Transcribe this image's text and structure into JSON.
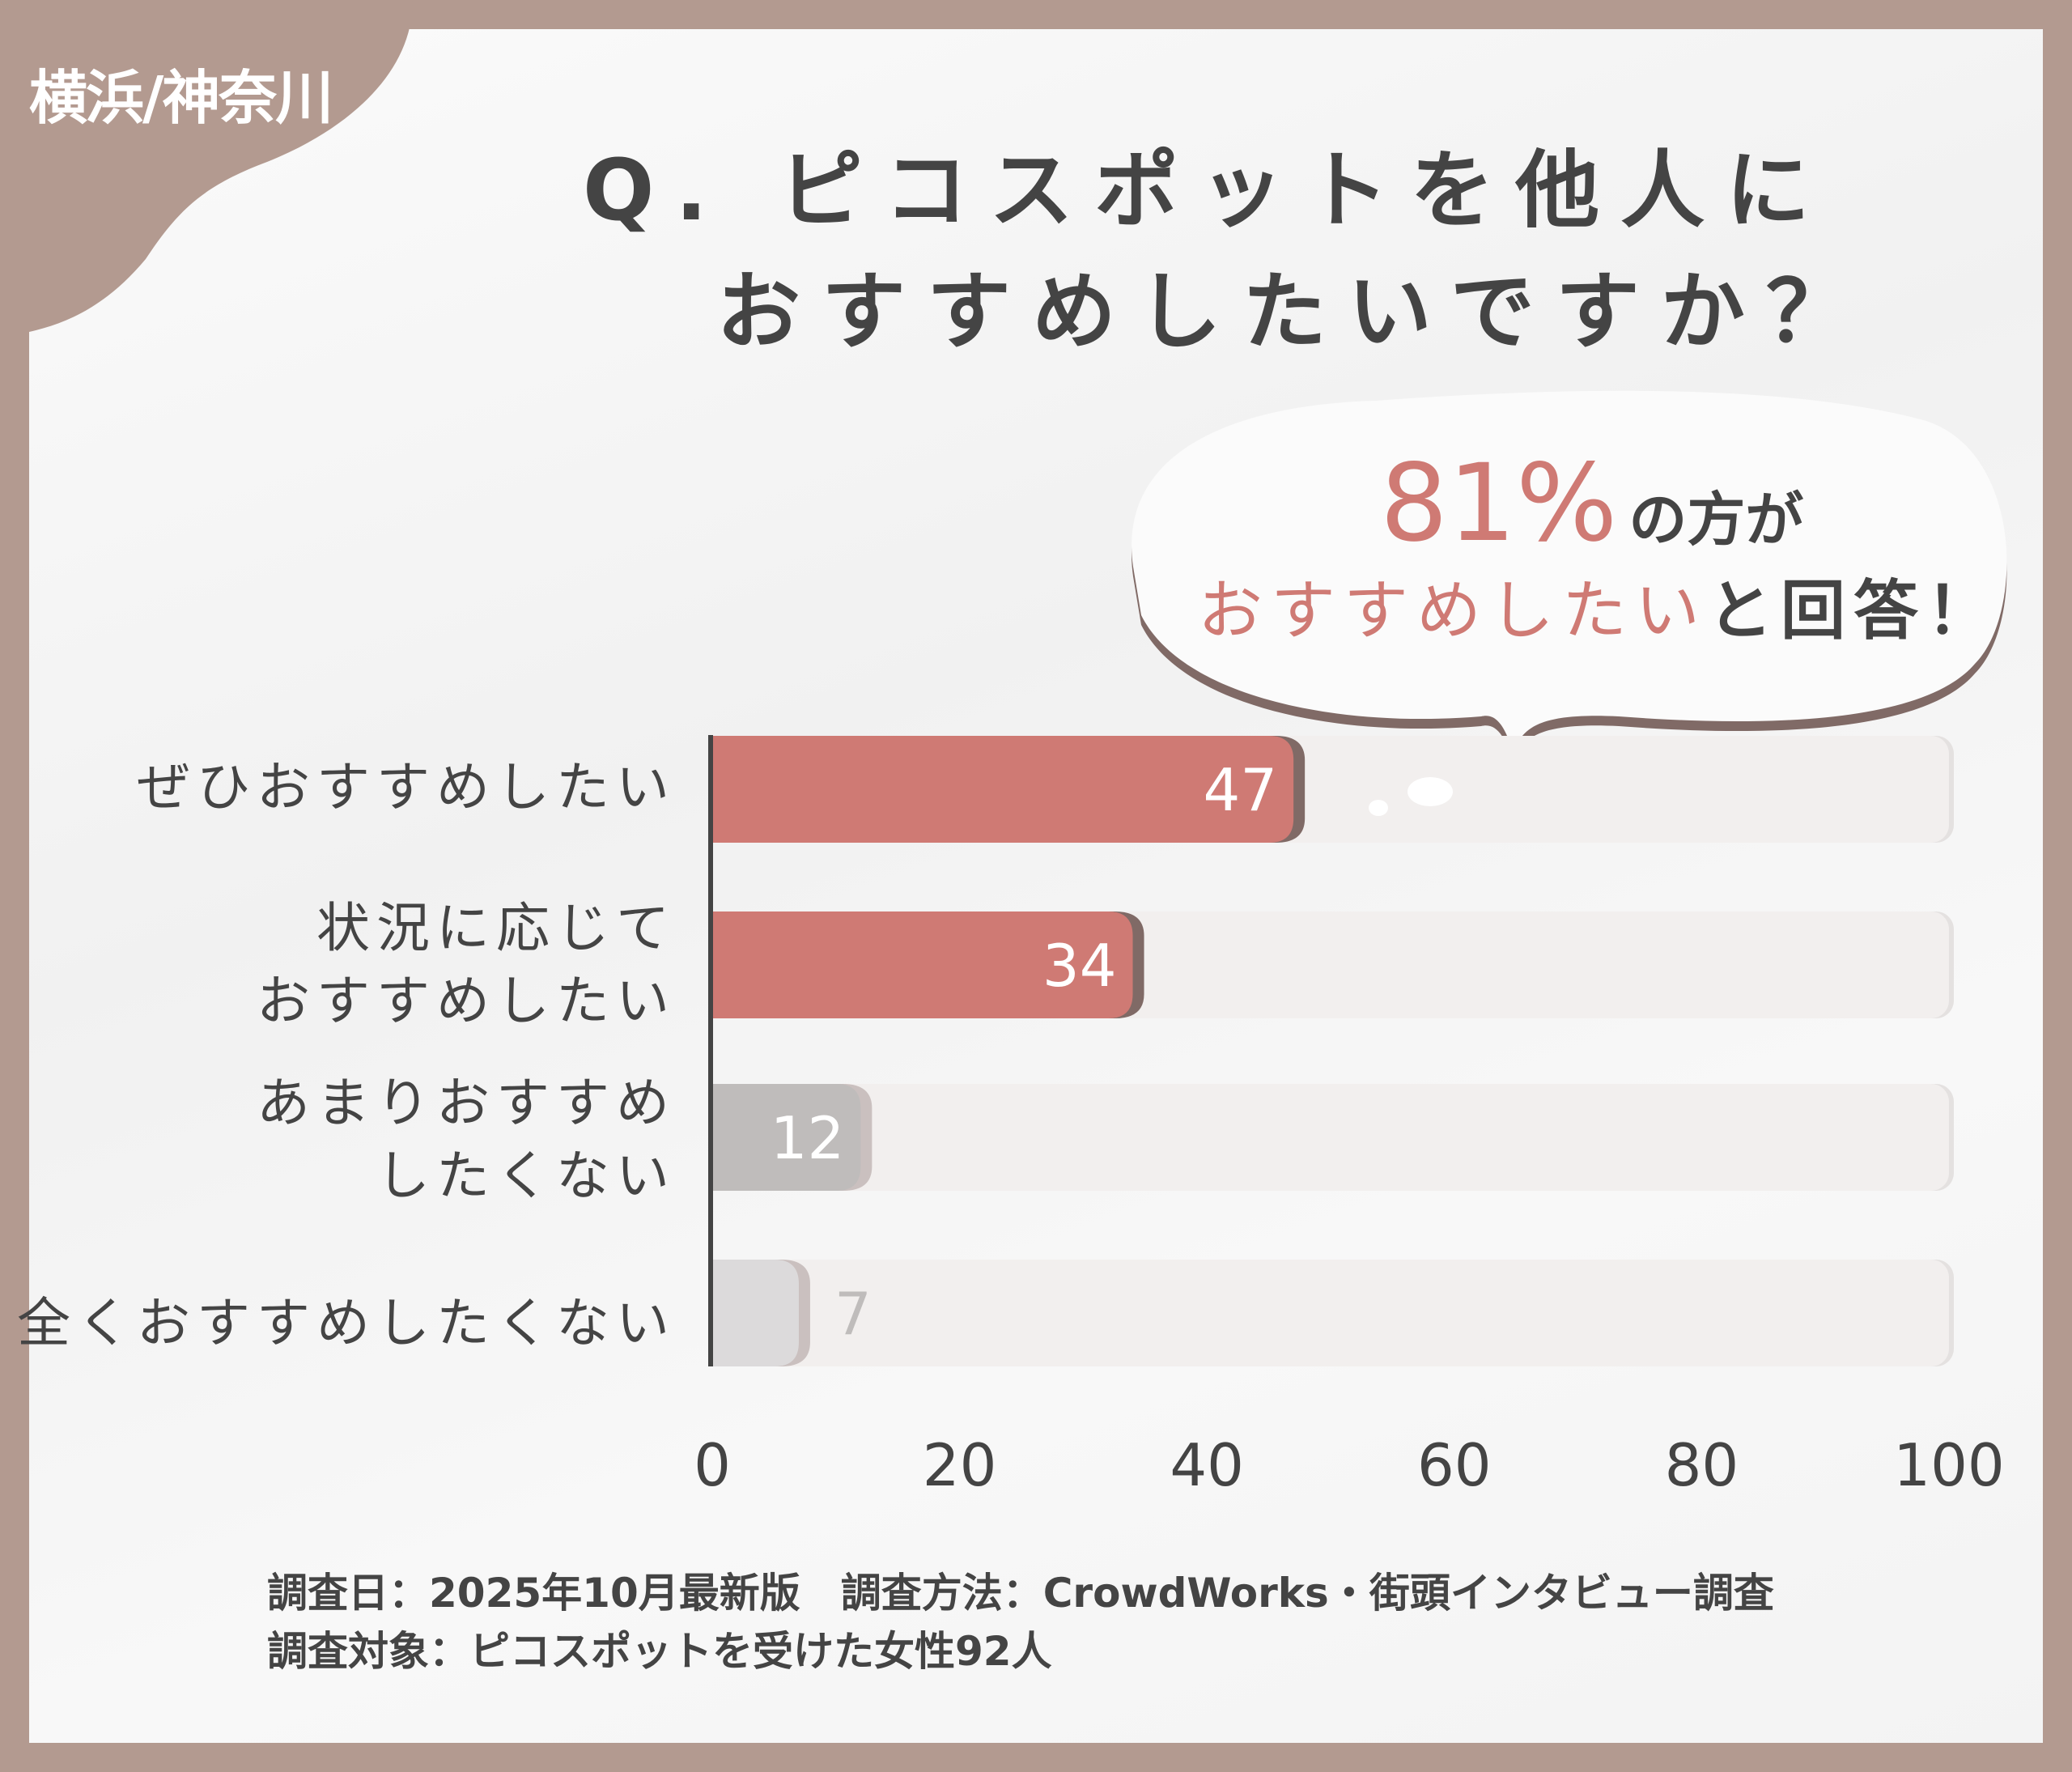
{
  "tag": "横浜/神奈川",
  "title": {
    "line1": "Q. ピコスポットを他人に",
    "line2": "おすすめしたいですか？"
  },
  "callout": {
    "percent": "81%",
    "suffix": "の方が",
    "highlight": "おすすめしたい",
    "tail": "と回答！"
  },
  "colors": {
    "frame": "#b39a90",
    "accent": "#cf7a74",
    "shadow": "#806a66",
    "gray": "#bfbcbb",
    "lightgray": "#dcdadb",
    "track": "#f2efee",
    "text": "#444444"
  },
  "chart_data": {
    "type": "bar",
    "orientation": "horizontal",
    "categories": [
      "ぜひおすすめしたい",
      "状況に応じて\nおすすめしたい",
      "あまりおすすめ\nしたくない",
      "全くおすすめしたくない"
    ],
    "values": [
      47,
      34,
      12,
      7
    ],
    "data_labels": [
      "47",
      "34",
      "12",
      "7"
    ],
    "xlim": [
      0,
      100
    ],
    "xticks": [
      "0",
      "20",
      "40",
      "60",
      "80",
      "100"
    ],
    "grid": false
  },
  "footer": {
    "line1": "調査日：2025年10月最新版　調査方法：CrowdWorks・街頭インタビュー調査",
    "line2": "調査対象：ピコスポットを受けた女性92人"
  }
}
